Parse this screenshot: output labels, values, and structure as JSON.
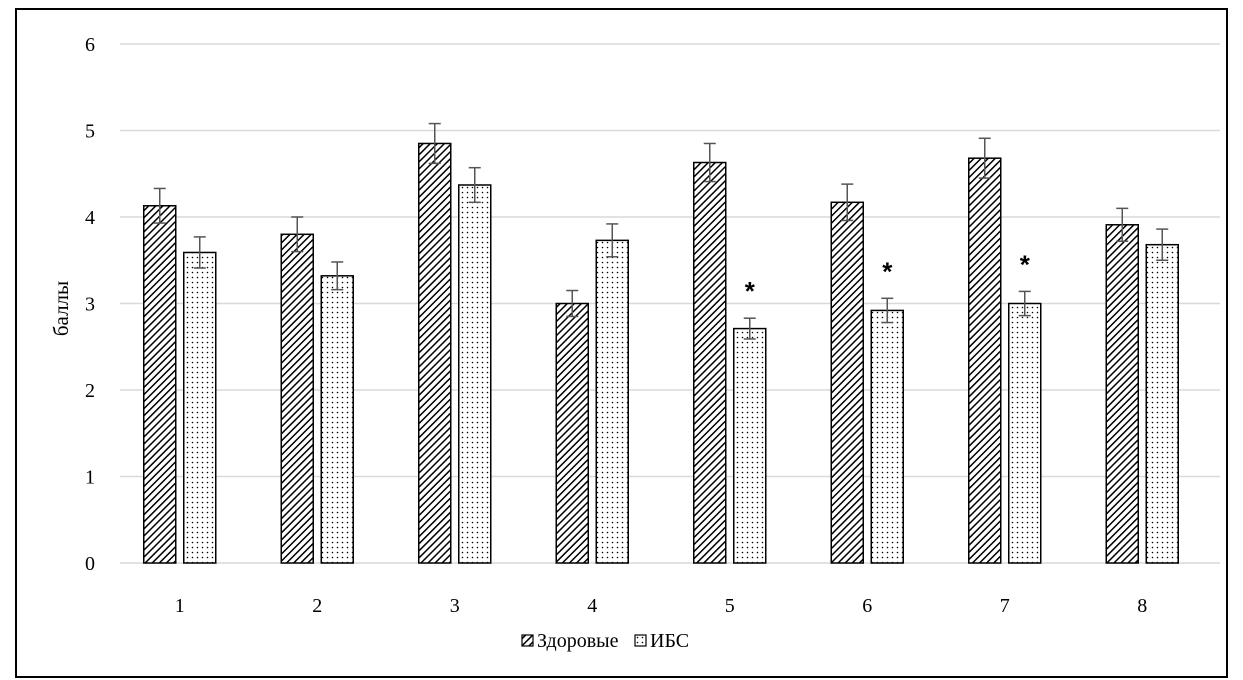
{
  "chart_data": {
    "type": "bar",
    "title": "",
    "xlabel": "",
    "ylabel": "баллы",
    "ylim": [
      0,
      6
    ],
    "yticks": [
      "0",
      "1",
      "2",
      "3",
      "4",
      "5",
      "6"
    ],
    "categories": [
      "1",
      "2",
      "3",
      "4",
      "5",
      "6",
      "7",
      "8"
    ],
    "series": [
      {
        "name": "Здоровые",
        "pattern": "diagonal-hatch",
        "values": [
          4.13,
          3.8,
          4.85,
          3.0,
          4.63,
          4.17,
          4.68,
          3.91
        ],
        "errors": [
          0.2,
          0.2,
          0.23,
          0.15,
          0.22,
          0.21,
          0.23,
          0.19
        ]
      },
      {
        "name": "ИБС",
        "pattern": "dots",
        "values": [
          3.59,
          3.32,
          4.37,
          3.73,
          2.71,
          2.92,
          3.0,
          3.68
        ],
        "errors": [
          0.18,
          0.16,
          0.2,
          0.19,
          0.12,
          0.14,
          0.14,
          0.18
        ]
      }
    ],
    "significance": [
      {
        "category": "5",
        "series": "ИБС",
        "mark": "*"
      },
      {
        "category": "6",
        "series": "ИБС",
        "mark": "*"
      },
      {
        "category": "7",
        "series": "ИБС",
        "mark": "*"
      }
    ],
    "grid": true,
    "legend_position": "bottom-center"
  }
}
